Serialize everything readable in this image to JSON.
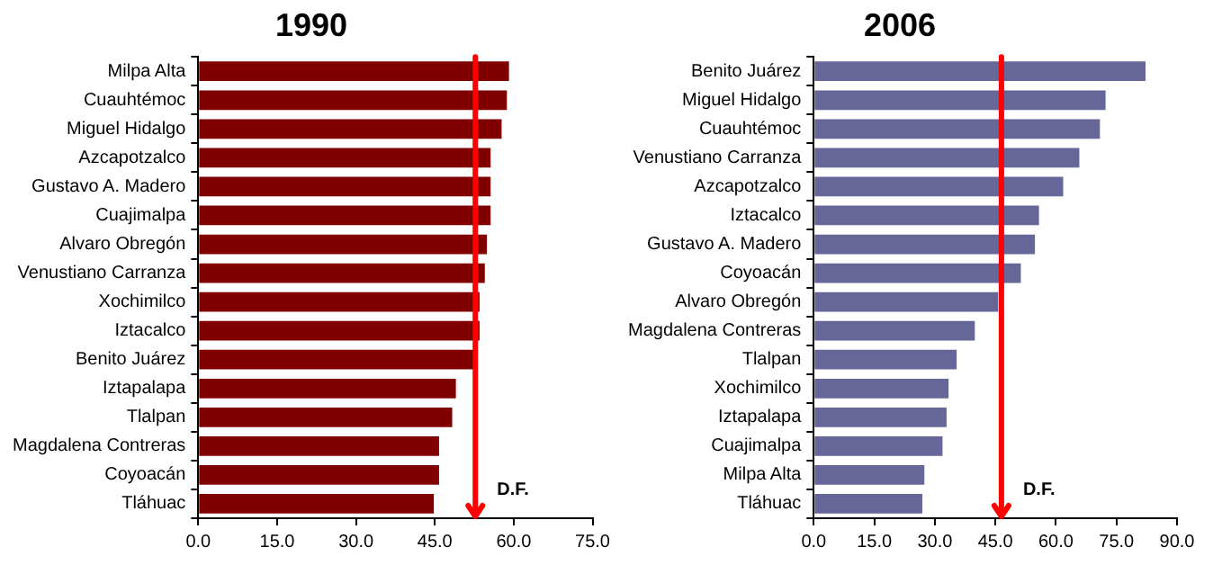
{
  "chart_data": [
    {
      "type": "bar",
      "title": "1990",
      "orientation": "horizontal",
      "categories": [
        "Milpa Alta",
        "Cuauhtémoc",
        "Miguel Hidalgo",
        "Azcapotzalco",
        "Gustavo A. Madero",
        "Cuajimalpa",
        "Alvaro Obregón",
        "Venustiano Carranza",
        "Xochimilco",
        "Iztacalco",
        "Benito Juárez",
        "Iztapalapa",
        "Tlalpan",
        "Magdalena Contreras",
        "Coyoacán",
        "Tláhuac"
      ],
      "values": [
        59.1,
        58.7,
        57.7,
        55.6,
        55.6,
        55.6,
        54.9,
        54.5,
        53.5,
        53.5,
        53.0,
        49.0,
        48.3,
        45.8,
        45.8,
        44.8
      ],
      "color": "#800000",
      "xlim": [
        0,
        75
      ],
      "xticks": [
        {
          "value": 0,
          "label": "0.0"
        },
        {
          "value": 15,
          "label": "15.0"
        },
        {
          "value": 30,
          "label": "30.0"
        },
        {
          "value": 45,
          "label": "45.0"
        },
        {
          "value": 60,
          "label": "60.0"
        },
        {
          "value": 75,
          "label": "75.0"
        }
      ],
      "ref_lines": [
        {
          "axis": "x",
          "value": 52.7,
          "label": "D.F.",
          "color": "#ff0000"
        }
      ],
      "grid": false,
      "legend": false
    },
    {
      "type": "bar",
      "title": "2006",
      "orientation": "horizontal",
      "categories": [
        "Benito Juárez",
        "Miguel Hidalgo",
        "Cuauhtémoc",
        "Venustiano Carranza",
        "Azcapotzalco",
        "Iztacalco",
        "Gustavo A. Madero",
        "Coyoacán",
        "Alvaro Obregón",
        "Magdalena Contreras",
        "Tlalpan",
        "Xochimilco",
        "Iztapalapa",
        "Cuajimalpa",
        "Milpa Alta",
        "Tláhuac"
      ],
      "values": [
        82.2,
        72.3,
        70.9,
        65.8,
        61.8,
        55.8,
        54.8,
        51.3,
        45.7,
        39.9,
        35.4,
        33.4,
        32.9,
        31.9,
        27.4,
        26.9
      ],
      "color": "#666699",
      "xlim": [
        0,
        90
      ],
      "xticks": [
        {
          "value": 0,
          "label": "0.0"
        },
        {
          "value": 15,
          "label": "15.0"
        },
        {
          "value": 30,
          "label": "30.0"
        },
        {
          "value": 45,
          "label": "45.0"
        },
        {
          "value": 60,
          "label": "60.0"
        },
        {
          "value": 75,
          "label": "75.0"
        },
        {
          "value": 90,
          "label": "90.0"
        }
      ],
      "ref_lines": [
        {
          "axis": "x",
          "value": 46.5,
          "label": "D.F.",
          "color": "#ff0000"
        }
      ],
      "grid": false,
      "legend": false
    }
  ]
}
